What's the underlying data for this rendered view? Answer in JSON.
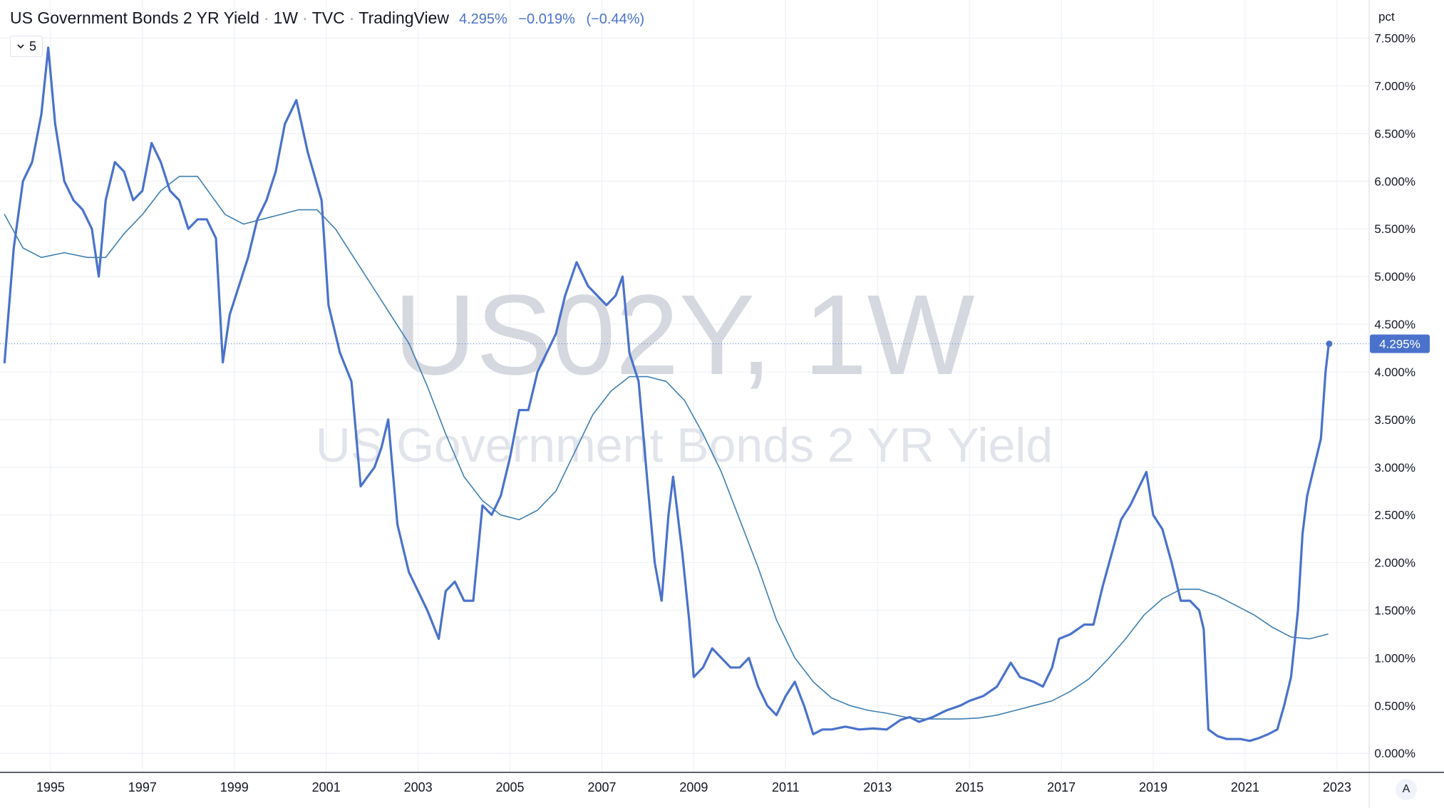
{
  "header": {
    "symbol_name": "US Government Bonds 2 YR Yield",
    "interval": "1W",
    "exchange": "TVC",
    "source": "TradingView",
    "last_value": "4.295%",
    "change_abs": "−0.019%",
    "change_pct": "(−0.44%)",
    "separator": "·"
  },
  "interval_control": {
    "icon": "chevron-down-icon",
    "value": "5"
  },
  "watermark": {
    "line1": "US02Y, 1W",
    "line2": "US Government Bonds 2 YR Yield"
  },
  "price_scale": {
    "unit_label": "pct",
    "last_price_label": "4.295%"
  },
  "scale_mode_button": {
    "label": "A"
  },
  "colors": {
    "price_line": "#4a72cc",
    "moving_average": "#3f7fb0",
    "last_price_badge": "#4a72cc",
    "grid": "#eef1f6",
    "axis_text": "#131722"
  },
  "chart_data": {
    "type": "line",
    "title": "US Government Bonds 2 YR Yield",
    "xlabel": "",
    "ylabel": "",
    "ylim": [
      -0.2,
      7.9
    ],
    "xlim": [
      1993.9,
      2023.7
    ],
    "grid": true,
    "y_tick_labels": [
      "0.000%",
      "0.500%",
      "1.000%",
      "1.500%",
      "2.000%",
      "2.500%",
      "3.000%",
      "3.500%",
      "4.000%",
      "4.500%",
      "5.000%",
      "5.500%",
      "6.000%",
      "6.500%",
      "7.000%",
      "7.500%"
    ],
    "y_tick_values": [
      0,
      0.5,
      1,
      1.5,
      2,
      2.5,
      3,
      3.5,
      4,
      4.5,
      5,
      5.5,
      6,
      6.5,
      7,
      7.5
    ],
    "x_tick_labels": [
      "1995",
      "1997",
      "1999",
      "2001",
      "2003",
      "2005",
      "2007",
      "2009",
      "2011",
      "2013",
      "2015",
      "2017",
      "2019",
      "2021",
      "2023"
    ],
    "x_tick_values": [
      1995,
      1997,
      1999,
      2001,
      2003,
      2005,
      2007,
      2009,
      2011,
      2013,
      2015,
      2017,
      2019,
      2021,
      2023
    ],
    "last_value": 4.295,
    "series": [
      {
        "values": [
          [
            1994.0,
            4.1
          ],
          [
            1994.2,
            5.3
          ],
          [
            1994.4,
            6.0
          ],
          [
            1994.6,
            6.2
          ],
          [
            1994.8,
            6.7
          ],
          [
            1994.95,
            7.4
          ],
          [
            1995.1,
            6.6
          ],
          [
            1995.3,
            6.0
          ],
          [
            1995.5,
            5.8
          ],
          [
            1995.7,
            5.7
          ],
          [
            1995.9,
            5.5
          ],
          [
            1996.05,
            5.0
          ],
          [
            1996.2,
            5.8
          ],
          [
            1996.4,
            6.2
          ],
          [
            1996.6,
            6.1
          ],
          [
            1996.8,
            5.8
          ],
          [
            1997.0,
            5.9
          ],
          [
            1997.2,
            6.4
          ],
          [
            1997.4,
            6.2
          ],
          [
            1997.6,
            5.9
          ],
          [
            1997.8,
            5.8
          ],
          [
            1998.0,
            5.5
          ],
          [
            1998.2,
            5.6
          ],
          [
            1998.4,
            5.6
          ],
          [
            1998.6,
            5.4
          ],
          [
            1998.75,
            4.1
          ],
          [
            1998.9,
            4.6
          ],
          [
            1999.1,
            4.9
          ],
          [
            1999.3,
            5.2
          ],
          [
            1999.5,
            5.6
          ],
          [
            1999.7,
            5.8
          ],
          [
            1999.9,
            6.1
          ],
          [
            2000.1,
            6.6
          ],
          [
            2000.35,
            6.85
          ],
          [
            2000.6,
            6.3
          ],
          [
            2000.9,
            5.8
          ],
          [
            2001.05,
            4.7
          ],
          [
            2001.3,
            4.2
          ],
          [
            2001.55,
            3.9
          ],
          [
            2001.75,
            2.8
          ],
          [
            2001.9,
            2.9
          ],
          [
            2002.05,
            3.0
          ],
          [
            2002.2,
            3.2
          ],
          [
            2002.35,
            3.5
          ],
          [
            2002.55,
            2.4
          ],
          [
            2002.8,
            1.9
          ],
          [
            2003.0,
            1.7
          ],
          [
            2003.2,
            1.5
          ],
          [
            2003.45,
            1.2
          ],
          [
            2003.6,
            1.7
          ],
          [
            2003.8,
            1.8
          ],
          [
            2004.0,
            1.6
          ],
          [
            2004.2,
            1.6
          ],
          [
            2004.4,
            2.6
          ],
          [
            2004.6,
            2.5
          ],
          [
            2004.8,
            2.7
          ],
          [
            2005.0,
            3.1
          ],
          [
            2005.2,
            3.6
          ],
          [
            2005.4,
            3.6
          ],
          [
            2005.6,
            4.0
          ],
          [
            2005.8,
            4.2
          ],
          [
            2006.0,
            4.4
          ],
          [
            2006.2,
            4.8
          ],
          [
            2006.45,
            5.15
          ],
          [
            2006.7,
            4.9
          ],
          [
            2006.9,
            4.8
          ],
          [
            2007.1,
            4.7
          ],
          [
            2007.3,
            4.8
          ],
          [
            2007.45,
            5.0
          ],
          [
            2007.6,
            4.2
          ],
          [
            2007.8,
            3.9
          ],
          [
            2008.0,
            2.8
          ],
          [
            2008.15,
            2.0
          ],
          [
            2008.3,
            1.6
          ],
          [
            2008.45,
            2.5
          ],
          [
            2008.55,
            2.9
          ],
          [
            2008.75,
            2.1
          ],
          [
            2008.9,
            1.4
          ],
          [
            2009.0,
            0.8
          ],
          [
            2009.2,
            0.9
          ],
          [
            2009.4,
            1.1
          ],
          [
            2009.6,
            1.0
          ],
          [
            2009.8,
            0.9
          ],
          [
            2010.0,
            0.9
          ],
          [
            2010.2,
            1.0
          ],
          [
            2010.4,
            0.7
          ],
          [
            2010.6,
            0.5
          ],
          [
            2010.8,
            0.4
          ],
          [
            2011.0,
            0.6
          ],
          [
            2011.2,
            0.75
          ],
          [
            2011.4,
            0.5
          ],
          [
            2011.6,
            0.2
          ],
          [
            2011.8,
            0.25
          ],
          [
            2012.0,
            0.25
          ],
          [
            2012.3,
            0.28
          ],
          [
            2012.6,
            0.25
          ],
          [
            2012.9,
            0.26
          ],
          [
            2013.2,
            0.25
          ],
          [
            2013.5,
            0.35
          ],
          [
            2013.7,
            0.38
          ],
          [
            2013.9,
            0.33
          ],
          [
            2014.2,
            0.38
          ],
          [
            2014.5,
            0.45
          ],
          [
            2014.8,
            0.5
          ],
          [
            2015.0,
            0.55
          ],
          [
            2015.3,
            0.6
          ],
          [
            2015.6,
            0.7
          ],
          [
            2015.9,
            0.95
          ],
          [
            2016.1,
            0.8
          ],
          [
            2016.4,
            0.75
          ],
          [
            2016.6,
            0.7
          ],
          [
            2016.8,
            0.9
          ],
          [
            2016.95,
            1.2
          ],
          [
            2017.2,
            1.25
          ],
          [
            2017.5,
            1.35
          ],
          [
            2017.7,
            1.35
          ],
          [
            2017.9,
            1.75
          ],
          [
            2018.1,
            2.1
          ],
          [
            2018.3,
            2.45
          ],
          [
            2018.5,
            2.6
          ],
          [
            2018.7,
            2.8
          ],
          [
            2018.85,
            2.95
          ],
          [
            2019.0,
            2.5
          ],
          [
            2019.2,
            2.35
          ],
          [
            2019.4,
            2.0
          ],
          [
            2019.6,
            1.6
          ],
          [
            2019.8,
            1.6
          ],
          [
            2020.0,
            1.5
          ],
          [
            2020.1,
            1.3
          ],
          [
            2020.2,
            0.25
          ],
          [
            2020.4,
            0.18
          ],
          [
            2020.6,
            0.15
          ],
          [
            2020.9,
            0.15
          ],
          [
            2021.1,
            0.13
          ],
          [
            2021.3,
            0.16
          ],
          [
            2021.5,
            0.2
          ],
          [
            2021.7,
            0.25
          ],
          [
            2021.85,
            0.5
          ],
          [
            2022.0,
            0.8
          ],
          [
            2022.15,
            1.5
          ],
          [
            2022.25,
            2.3
          ],
          [
            2022.35,
            2.7
          ],
          [
            2022.5,
            3.0
          ],
          [
            2022.65,
            3.3
          ],
          [
            2022.75,
            4.0
          ],
          [
            2022.82,
            4.29
          ],
          [
            2022.83,
            4.295
          ]
        ]
      },
      {
        "values": [
          [
            1994.0,
            5.65
          ],
          [
            1994.4,
            5.3
          ],
          [
            1994.8,
            5.2
          ],
          [
            1995.3,
            5.25
          ],
          [
            1995.8,
            5.2
          ],
          [
            1996.2,
            5.2
          ],
          [
            1996.6,
            5.45
          ],
          [
            1997.0,
            5.65
          ],
          [
            1997.4,
            5.9
          ],
          [
            1997.8,
            6.05
          ],
          [
            1998.2,
            6.05
          ],
          [
            1998.5,
            5.85
          ],
          [
            1998.8,
            5.65
          ],
          [
            1999.2,
            5.55
          ],
          [
            1999.6,
            5.6
          ],
          [
            2000.0,
            5.65
          ],
          [
            2000.4,
            5.7
          ],
          [
            2000.8,
            5.7
          ],
          [
            2001.2,
            5.5
          ],
          [
            2001.6,
            5.2
          ],
          [
            2002.0,
            4.9
          ],
          [
            2002.4,
            4.6
          ],
          [
            2002.8,
            4.3
          ],
          [
            2003.2,
            3.85
          ],
          [
            2003.6,
            3.35
          ],
          [
            2004.0,
            2.9
          ],
          [
            2004.4,
            2.65
          ],
          [
            2004.8,
            2.5
          ],
          [
            2005.2,
            2.45
          ],
          [
            2005.6,
            2.55
          ],
          [
            2006.0,
            2.75
          ],
          [
            2006.4,
            3.15
          ],
          [
            2006.8,
            3.55
          ],
          [
            2007.2,
            3.8
          ],
          [
            2007.6,
            3.95
          ],
          [
            2008.0,
            3.95
          ],
          [
            2008.4,
            3.9
          ],
          [
            2008.8,
            3.7
          ],
          [
            2009.2,
            3.35
          ],
          [
            2009.6,
            2.95
          ],
          [
            2010.0,
            2.45
          ],
          [
            2010.4,
            1.95
          ],
          [
            2010.8,
            1.4
          ],
          [
            2011.2,
            1.0
          ],
          [
            2011.6,
            0.75
          ],
          [
            2012.0,
            0.58
          ],
          [
            2012.4,
            0.5
          ],
          [
            2012.8,
            0.45
          ],
          [
            2013.2,
            0.42
          ],
          [
            2013.6,
            0.38
          ],
          [
            2014.0,
            0.36
          ],
          [
            2014.4,
            0.36
          ],
          [
            2014.8,
            0.36
          ],
          [
            2015.2,
            0.37
          ],
          [
            2015.6,
            0.4
          ],
          [
            2016.0,
            0.45
          ],
          [
            2016.4,
            0.5
          ],
          [
            2016.8,
            0.55
          ],
          [
            2017.2,
            0.65
          ],
          [
            2017.6,
            0.78
          ],
          [
            2018.0,
            0.98
          ],
          [
            2018.4,
            1.2
          ],
          [
            2018.8,
            1.45
          ],
          [
            2019.2,
            1.62
          ],
          [
            2019.6,
            1.72
          ],
          [
            2020.0,
            1.72
          ],
          [
            2020.4,
            1.65
          ],
          [
            2020.8,
            1.55
          ],
          [
            2021.2,
            1.45
          ],
          [
            2021.6,
            1.32
          ],
          [
            2022.0,
            1.22
          ],
          [
            2022.4,
            1.2
          ],
          [
            2022.8,
            1.25
          ]
        ]
      }
    ]
  }
}
